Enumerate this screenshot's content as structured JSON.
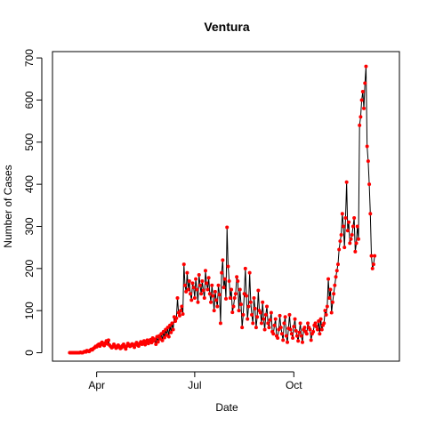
{
  "chart_data": {
    "type": "line",
    "title": "Ventura",
    "xlabel": "Date",
    "ylabel": "Number of Cases",
    "x_ticks": [
      {
        "label": "Apr",
        "date": "2020-04-01"
      },
      {
        "label": "Jul",
        "date": "2020-07-01"
      },
      {
        "label": "Oct",
        "date": "2020-10-01"
      }
    ],
    "y_ticks": [
      0,
      100,
      200,
      300,
      400,
      500,
      600,
      700
    ],
    "xlim": [
      "2020-02-20",
      "2021-01-07"
    ],
    "ylim": [
      -20,
      715
    ],
    "line_color": "#000000",
    "point_color": "#ff0000",
    "grid": false,
    "legend": "none",
    "x_start_date": "2020-03-07",
    "x_step_days": 1,
    "values": [
      0,
      0,
      0,
      0,
      0,
      0,
      0,
      0,
      0,
      0,
      1,
      0,
      0,
      2,
      3,
      2,
      5,
      4,
      3,
      6,
      8,
      7,
      10,
      12,
      15,
      14,
      18,
      20,
      16,
      22,
      25,
      19,
      17,
      23,
      28,
      21,
      30,
      18,
      15,
      12,
      14,
      20,
      16,
      11,
      13,
      18,
      15,
      10,
      12,
      17,
      20,
      14,
      9,
      16,
      22,
      18,
      15,
      19,
      21,
      17,
      13,
      20,
      24,
      18,
      16,
      22,
      26,
      20,
      23,
      28,
      19,
      25,
      30,
      22,
      27,
      31,
      24,
      35,
      28,
      32,
      20,
      38,
      26,
      40,
      33,
      45,
      29,
      50,
      36,
      55,
      42,
      60,
      38,
      65,
      48,
      70,
      55,
      85,
      75,
      82,
      130,
      95,
      88,
      100,
      110,
      92,
      210,
      160,
      145,
      190,
      150,
      170,
      140,
      125,
      165,
      155,
      130,
      175,
      150,
      120,
      185,
      160,
      140,
      170,
      148,
      130,
      195,
      165,
      150,
      178,
      140,
      120,
      160,
      135,
      100,
      145,
      125,
      110,
      160,
      138,
      70,
      190,
      220,
      155,
      175,
      128,
      298,
      205,
      170,
      130,
      150,
      96,
      110,
      130,
      140,
      180,
      170,
      100,
      150,
      115,
      60,
      90,
      140,
      200,
      135,
      80,
      110,
      190,
      120,
      90,
      70,
      130,
      105,
      60,
      85,
      148,
      100,
      95,
      70,
      120,
      80,
      55,
      90,
      110,
      70,
      60,
      78,
      95,
      50,
      45,
      65,
      80,
      40,
      35,
      55,
      88,
      60,
      45,
      30,
      70,
      85,
      40,
      25,
      58,
      90,
      55,
      45,
      35,
      62,
      80,
      52,
      40,
      28,
      48,
      70,
      40,
      25,
      55,
      60,
      50,
      45,
      70,
      60,
      55,
      30,
      45,
      50,
      65,
      70,
      62,
      55,
      75,
      45,
      80,
      55,
      65,
      70,
      100,
      90,
      110,
      175,
      130,
      150,
      95,
      120,
      140,
      160,
      180,
      195,
      210,
      245,
      265,
      280,
      330,
      300,
      250,
      320,
      405,
      290,
      310,
      260,
      270,
      280,
      300,
      320,
      240,
      260,
      300,
      270,
      540,
      560,
      600,
      620,
      580,
      640,
      680,
      490,
      455,
      400,
      330,
      230,
      200,
      210,
      230
    ]
  }
}
